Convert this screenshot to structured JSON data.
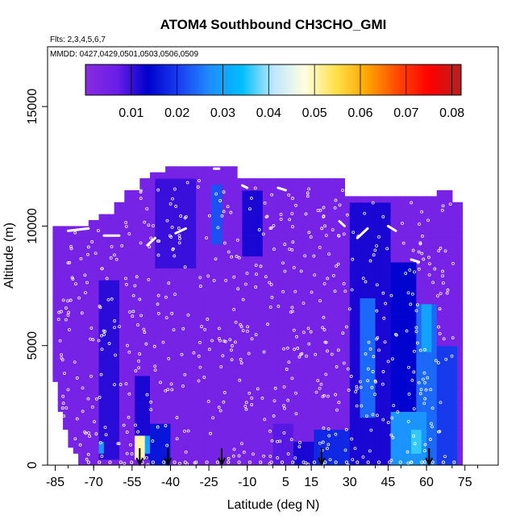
{
  "chart_data": {
    "type": "heatmap",
    "title": "ATOM4 Southbound CH3CHO_GMI",
    "annotations": {
      "flights": "Flts: 2,3,4,5,6,7",
      "dates": "MMDD: 0427,0429,0501,0503,0506,0509"
    },
    "xlabel": "Latitude (deg N)",
    "ylabel": "Altitude (m)",
    "xlim": [
      -88,
      88
    ],
    "ylim": [
      0,
      17500
    ],
    "x_ticks": [
      -85,
      -70,
      -55,
      -40,
      -25,
      -10,
      5,
      15,
      30,
      45,
      60,
      75
    ],
    "x_tick_labels": [
      "-85",
      "-70",
      "-55",
      "-40",
      "-25",
      "-10",
      "5",
      "15",
      "30",
      "45",
      "60",
      "75"
    ],
    "y_ticks": [
      0,
      5000,
      10000,
      15000
    ],
    "y_tick_labels": [
      "0",
      "5000",
      "10000",
      "15000"
    ],
    "colorbar": {
      "min": 0.0,
      "max": 0.082,
      "ticks": [
        0.01,
        0.02,
        0.03,
        0.04,
        0.05,
        0.06,
        0.07,
        0.08
      ],
      "tick_labels": [
        "0.01",
        "0.02",
        "0.03",
        "0.04",
        "0.05",
        "0.06",
        "0.07",
        "0.08"
      ],
      "colors": [
        "#8a2be2",
        "#6a1ee8",
        "#0000cd",
        "#1a3ff0",
        "#1e8fff",
        "#00bfff",
        "#bfe6ff",
        "#ffffe0",
        "#ffe04a",
        "#ffa500",
        "#ff4500",
        "#ff0000",
        "#b22222"
      ]
    },
    "background_value": 0.004,
    "coverage_columns": [
      {
        "lat": -80,
        "top": 10000
      },
      {
        "lat": -75,
        "top": 10000
      },
      {
        "lat": -70,
        "top": 10200
      },
      {
        "lat": -65,
        "top": 10500
      },
      {
        "lat": -60,
        "top": 10800
      },
      {
        "lat": -55,
        "top": 11500
      },
      {
        "lat": -50,
        "top": 12000
      },
      {
        "lat": -45,
        "top": 12200
      },
      {
        "lat": -40,
        "top": 12300
      },
      {
        "lat": -30,
        "top": 12300
      },
      {
        "lat": -20,
        "top": 12300
      },
      {
        "lat": -10,
        "top": 11900
      },
      {
        "lat": 0,
        "top": 11900
      },
      {
        "lat": 10,
        "top": 11800
      },
      {
        "lat": 20,
        "top": 11800
      },
      {
        "lat": 26,
        "top": 11800
      },
      {
        "lat": 30,
        "top": 11200
      },
      {
        "lat": 40,
        "top": 11200
      },
      {
        "lat": 50,
        "top": 11200
      },
      {
        "lat": 60,
        "top": 11200
      },
      {
        "lat": 68,
        "top": 11500
      },
      {
        "lat": 72,
        "top": 11000
      }
    ],
    "coverage_bottom_left": [
      {
        "lat": -85,
        "alt": 3500
      },
      {
        "lat": -82,
        "alt": 1800
      },
      {
        "lat": -78,
        "alt": 700
      },
      {
        "lat": -74,
        "alt": 0
      }
    ],
    "features": [
      {
        "lat0": 30,
        "lat1": 46,
        "alt0": 0,
        "alt1": 11000,
        "value": 0.012
      },
      {
        "lat0": 46,
        "lat1": 56,
        "alt0": 0,
        "alt1": 8500,
        "value": 0.014
      },
      {
        "lat0": 34,
        "lat1": 40,
        "alt0": 2000,
        "alt1": 7000,
        "value": 0.024
      },
      {
        "lat0": 56,
        "lat1": 64,
        "alt0": 0,
        "alt1": 6800,
        "value": 0.024
      },
      {
        "lat0": 58,
        "lat1": 62,
        "alt0": 4800,
        "alt1": 6800,
        "value": 0.03
      },
      {
        "lat0": 47,
        "lat1": 60,
        "alt0": 0,
        "alt1": 2200,
        "value": 0.028
      },
      {
        "lat0": 55,
        "lat1": 59,
        "alt0": 600,
        "alt1": 1400,
        "value": 0.036
      },
      {
        "lat0": 64,
        "lat1": 72,
        "alt0": 0,
        "alt1": 5000,
        "value": 0.02
      },
      {
        "lat0": 17,
        "lat1": 30,
        "alt0": 0,
        "alt1": 1400,
        "value": 0.018
      },
      {
        "lat0": 8,
        "lat1": 17,
        "alt0": 0,
        "alt1": 900,
        "value": 0.012
      },
      {
        "lat0": -24,
        "lat1": -19,
        "alt0": 9200,
        "alt1": 11800,
        "value": 0.022
      },
      {
        "lat0": -12,
        "lat1": -4,
        "alt0": 8800,
        "alt1": 11500,
        "value": 0.012
      },
      {
        "lat0": -45,
        "lat1": -30,
        "alt0": 8200,
        "alt1": 12000,
        "value": 0.01
      },
      {
        "lat0": -68,
        "lat1": -60,
        "alt0": 300,
        "alt1": 7800,
        "value": 0.011
      },
      {
        "lat0": -54,
        "lat1": -48,
        "alt0": 200,
        "alt1": 3800,
        "value": 0.012
      },
      {
        "lat0": -48,
        "lat1": -40,
        "alt0": 0,
        "alt1": 1800,
        "value": 0.016
      },
      {
        "lat0": -53,
        "lat1": -50,
        "alt0": 300,
        "alt1": 1300,
        "value": 0.05
      },
      {
        "lat0": -50,
        "lat1": -48,
        "alt0": 400,
        "alt1": 1200,
        "value": 0.03
      },
      {
        "lat0": -68,
        "lat1": -66,
        "alt0": 400,
        "alt1": 1000,
        "value": 0.028
      },
      {
        "lat0": 0,
        "lat1": 8,
        "alt0": 0,
        "alt1": 1800,
        "value": 0.008
      }
    ],
    "arrows_lat": [
      -52,
      -41,
      -20,
      19,
      61
    ]
  }
}
